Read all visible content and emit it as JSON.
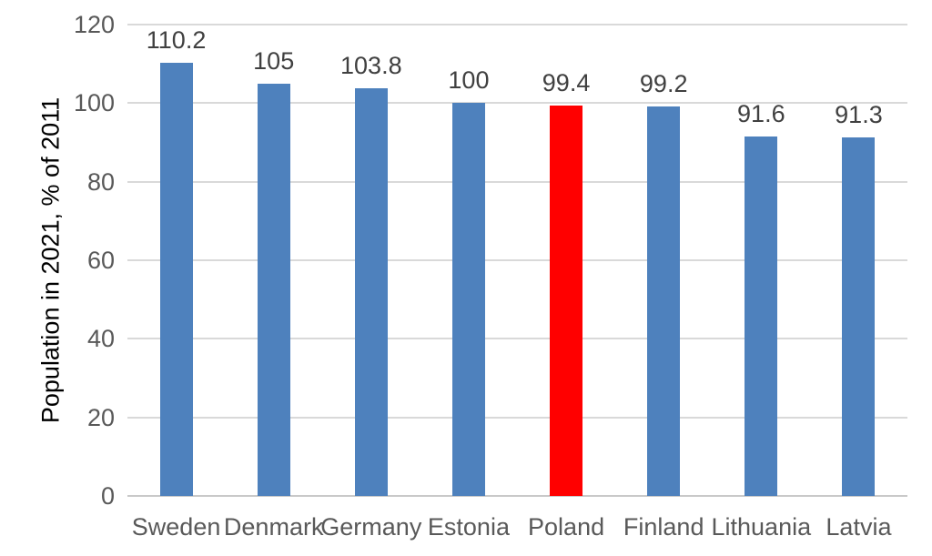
{
  "chart_data": {
    "type": "bar",
    "title": "",
    "xlabel": "",
    "ylabel": "Population in 2021, % of 2011",
    "categories": [
      "Sweden",
      "Denmark",
      "Germany",
      "Estonia",
      "Poland",
      "Finland",
      "Lithuania",
      "Latvia"
    ],
    "values": [
      110.2,
      105,
      103.8,
      100,
      99.4,
      99.2,
      91.6,
      91.3
    ],
    "data_labels": [
      "110.2",
      "105",
      "103.8",
      "100",
      "99.4",
      "99.2",
      "91.6",
      "91.3"
    ],
    "bar_colors": [
      "#4E81BD",
      "#4E81BD",
      "#4E81BD",
      "#4E81BD",
      "#FF0000",
      "#4E81BD",
      "#4E81BD",
      "#4E81BD"
    ],
    "default_bar_color": "#4E81BD",
    "highlight_category": "Poland",
    "highlight_color": "#FF0000",
    "ylim": [
      0,
      120
    ],
    "yticks": [
      0,
      20,
      40,
      60,
      80,
      100,
      120
    ],
    "grid": "horizontal",
    "legend": "none",
    "gridline_color": "#D9D9D9",
    "axis_line_color": "#C9C9C9",
    "tick_label_color": "#595959",
    "data_label_color": "#404040"
  }
}
